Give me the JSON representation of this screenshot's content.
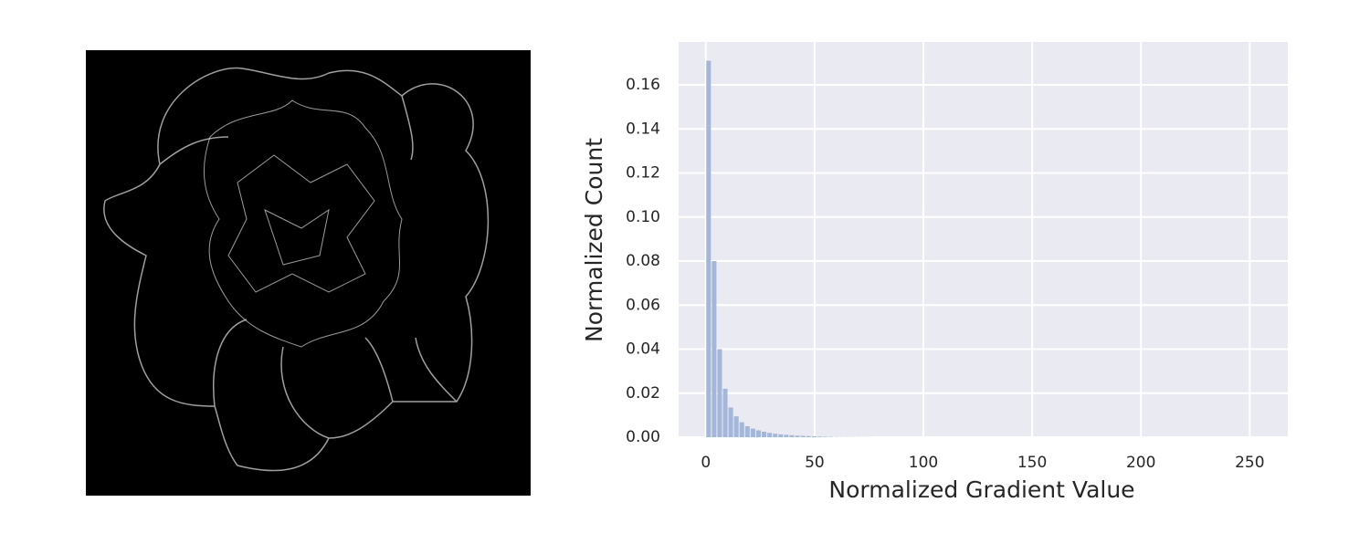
{
  "chart_data": {
    "type": "histogram",
    "xlabel": "Normalized Gradient Value",
    "ylabel": "Normalized Count",
    "bins": [
      0,
      2.55,
      5.1,
      7.65,
      10.2,
      12.75,
      15.3,
      17.85,
      20.4,
      22.95,
      25.5,
      28.05,
      30.6,
      33.15,
      35.7,
      38.25,
      40.8,
      43.35,
      45.9,
      48.45,
      51,
      53.55,
      56.1,
      58.65,
      61.2,
      63.75,
      66.3,
      68.85,
      71.4,
      73.95,
      76.5,
      79.05,
      81.6,
      84.15,
      86.7,
      89.25,
      91.8,
      94.35,
      96.9,
      99.45,
      102,
      104.55,
      107.1,
      109.65,
      112.2,
      114.75,
      117.3,
      119.85,
      122.4,
      124.95,
      127.5,
      130.05,
      132.6,
      135.15,
      137.7,
      140.25,
      142.8,
      145.35,
      147.9,
      150.45,
      153,
      155.55,
      158.1,
      160.65,
      163.2,
      165.75,
      168.3,
      170.85,
      173.4,
      175.95,
      178.5,
      181.05,
      183.6,
      186.15,
      188.7,
      191.25,
      193.8,
      196.35,
      198.9,
      201.45,
      204,
      206.55,
      209.1,
      211.65,
      214.2,
      216.75,
      219.3,
      221.85,
      224.4,
      226.95,
      229.5,
      232.05,
      234.6,
      237.15,
      239.7,
      242.25,
      244.8,
      247.35,
      249.9,
      252.45,
      255
    ],
    "values": [
      0.171,
      0.08,
      0.04,
      0.022,
      0.0135,
      0.0095,
      0.0068,
      0.005,
      0.0039,
      0.0031,
      0.0025,
      0.002,
      0.0016,
      0.0013,
      0.0011,
      0.0009,
      0.0007,
      0.0006,
      0.0005,
      0.0004,
      0.0003,
      0.00025,
      0.0002,
      0.00015,
      0.0001,
      0.0001,
      8e-05,
      6e-05,
      5e-05,
      4e-05,
      0,
      0,
      0,
      0,
      0,
      0,
      0,
      0,
      0,
      0,
      0,
      0,
      0,
      0,
      0,
      0,
      0,
      0,
      0,
      0,
      0,
      0,
      0,
      0,
      0,
      0,
      0,
      0,
      0,
      0,
      0,
      0,
      0,
      0,
      0,
      0,
      0,
      0,
      0,
      0,
      0,
      0,
      0,
      0,
      0,
      0,
      0,
      0,
      0,
      0,
      0,
      0,
      0,
      0,
      0,
      0,
      0,
      0,
      0,
      0,
      0,
      0,
      0,
      0,
      0,
      0,
      0,
      0,
      0,
      0
    ],
    "color": "#a4b7da",
    "xlim": [
      -12.5,
      267.5
    ],
    "ylim": [
      0,
      0.1795
    ],
    "xticks": [
      0,
      50,
      100,
      150,
      200,
      250
    ],
    "yticks": [
      {
        "value": 0,
        "label": "0.00"
      },
      {
        "value": 0.02,
        "label": "0.02"
      },
      {
        "value": 0.04,
        "label": "0.04"
      },
      {
        "value": 0.06,
        "label": "0.06"
      },
      {
        "value": 0.08,
        "label": "0.08"
      },
      {
        "value": 0.1,
        "label": "0.10"
      },
      {
        "value": 0.12,
        "label": "0.12"
      },
      {
        "value": 0.14,
        "label": "0.14"
      },
      {
        "value": 0.16,
        "label": "0.16"
      }
    ],
    "grid": true
  }
}
